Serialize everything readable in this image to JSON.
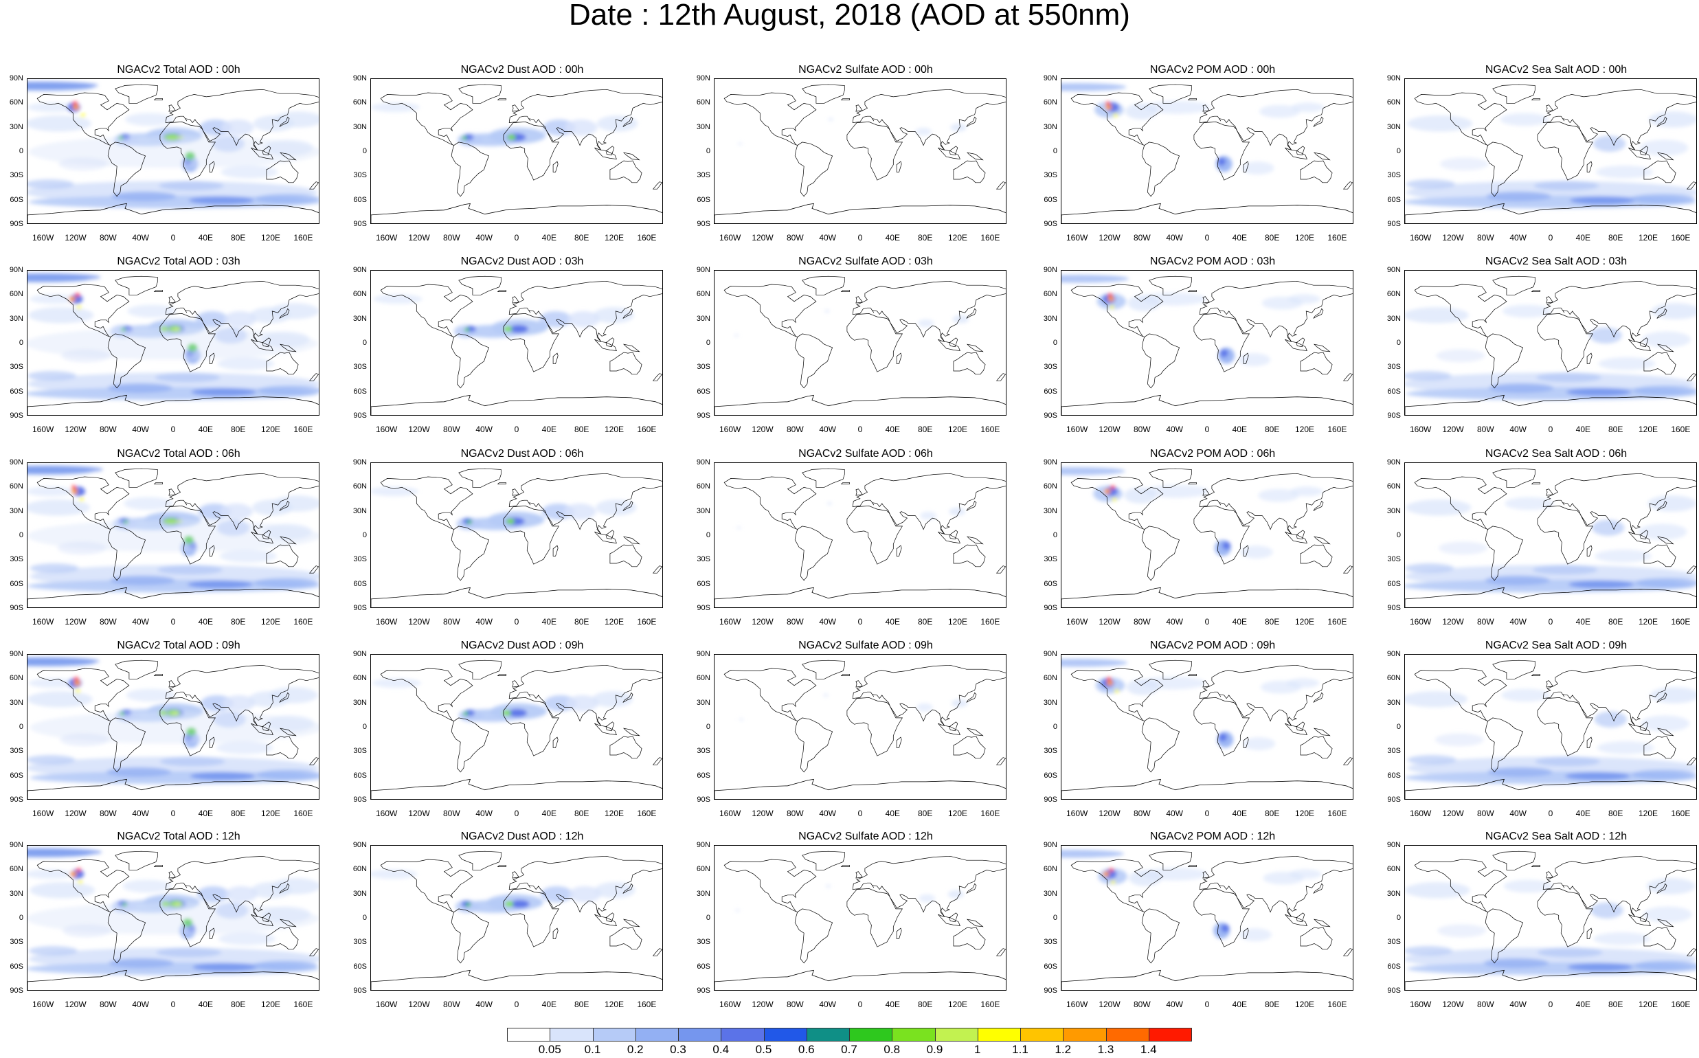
{
  "title": "Date : 12th August, 2018 (AOD at 550nm)",
  "lat_ticks": [
    "90N",
    "60N",
    "30N",
    "0",
    "30S",
    "60S",
    "90S"
  ],
  "lon_ticks": [
    "160W",
    "120W",
    "80W",
    "40W",
    "0",
    "40E",
    "80E",
    "120E",
    "160E"
  ],
  "time_rows": [
    "00h",
    "03h",
    "06h",
    "09h",
    "12h"
  ],
  "panel_titles": [
    [
      "NGACv2 Total AOD : 00h",
      "NGACv2 Dust AOD : 00h",
      "NGACv2 Sulfate AOD : 00h",
      "NGACv2 POM AOD : 00h",
      "NGACv2 Sea Salt AOD : 00h"
    ],
    [
      "NGACv2 Total AOD : 03h",
      "NGACv2 Dust AOD : 03h",
      "NGACv2 Sulfate AOD : 03h",
      "NGACv2 POM AOD : 03h",
      "NGACv2 Sea Salt AOD : 03h"
    ],
    [
      "NGACv2 Total AOD : 06h",
      "NGACv2 Dust AOD : 06h",
      "NGACv2 Sulfate AOD : 06h",
      "NGACv2 POM AOD : 06h",
      "NGACv2 Sea Salt AOD : 06h"
    ],
    [
      "NGACv2 Total AOD : 09h",
      "NGACv2 Dust AOD : 09h",
      "NGACv2 Sulfate AOD : 09h",
      "NGACv2 POM AOD : 09h",
      "NGACv2 Sea Salt  AOD : 09h"
    ],
    [
      "NGACv2 Total AOD  : 12h",
      "NGACv2 Dust AOD : 12h",
      "NGACv2 Sulfate AOD : 12h",
      "NGACv2 POM  AOD : 12h",
      "NGACv2 Sea Salt  AOD : 12h"
    ]
  ],
  "colorbar": {
    "ticks": [
      "0.05",
      "0.1",
      "0.2",
      "0.3",
      "0.4",
      "0.5",
      "0.6",
      "0.7",
      "0.8",
      "0.9",
      "1",
      "1.1",
      "1.2",
      "1.3",
      "1.4"
    ],
    "colors": [
      "#ffffff",
      "#d9e4fb",
      "#b6cbf7",
      "#93b0f3",
      "#7596ee",
      "#5b73e8",
      "#2158e8",
      "#0f8f86",
      "#2ec81e",
      "#7ae21f",
      "#c2f250",
      "#ffff00",
      "#ffc400",
      "#ff9a00",
      "#ff6a00",
      "#ff1a00"
    ]
  },
  "colors": {
    "land_outline": "#000000",
    "aerosol_light": "#d9e4fb",
    "aerosol_mid": "#93b0f3",
    "aerosol_strong": "#5b73e8",
    "dust_core": "#2ec81e",
    "fire_hotspot": "#ff1a00"
  }
}
